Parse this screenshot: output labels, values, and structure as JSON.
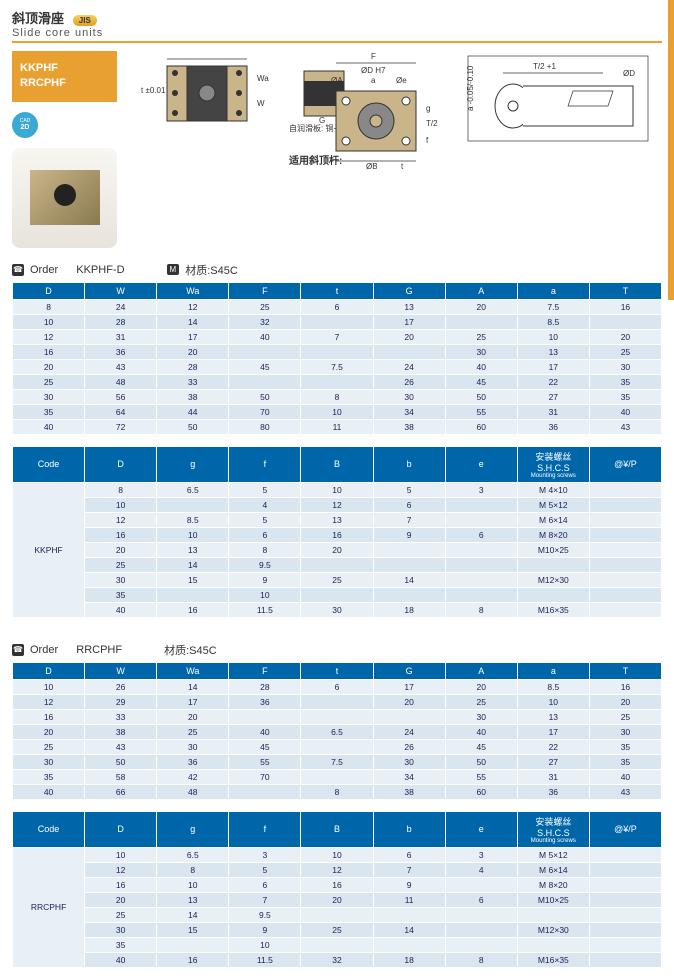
{
  "header": {
    "title_cn": "斜顶滑座",
    "title_en": "Slide core units",
    "jis": "JIS"
  },
  "codes": {
    "line1": "KKPHF",
    "line2": "RRCPHF"
  },
  "cad": {
    "top": "CAD",
    "bottom": "2D"
  },
  "diagram_labels": {
    "top_tol": "t ±0.01",
    "wa": "Wa",
    "w": "W",
    "f": "F",
    "dh7": "ØD H7",
    "oa": "ØA",
    "a_dim": "a",
    "oe": "Øe",
    "g_dim": "G",
    "g_low": "g",
    "t2": "T/2",
    "f_low": "f",
    "ob": "ØB",
    "t_dim": "t",
    "note1": "自润滑板: 铜+石墨",
    "note2": "适用斜顶杆:",
    "tol2": "T/2 +1",
    "od": "ØD",
    "atol": "a -0.05/-0.10"
  },
  "order1": {
    "label": "Order",
    "code": "KKPHF-D",
    "material_badge": "M",
    "material": "材质:S45C"
  },
  "t1": {
    "headers": [
      "D",
      "W",
      "Wa",
      "F",
      "t",
      "G",
      "A",
      "a",
      "T"
    ],
    "rows": [
      [
        "8",
        "24",
        "12",
        "25",
        "6",
        "13",
        "20",
        "7.5",
        "16"
      ],
      [
        "10",
        "28",
        "14",
        "32",
        "",
        "17",
        "",
        "8.5",
        ""
      ],
      [
        "12",
        "31",
        "17",
        "40",
        "7",
        "20",
        "25",
        "10",
        "20"
      ],
      [
        "16",
        "36",
        "20",
        "",
        "",
        "",
        "30",
        "13",
        "25"
      ],
      [
        "20",
        "43",
        "28",
        "45",
        "7.5",
        "24",
        "40",
        "17",
        "30"
      ],
      [
        "25",
        "48",
        "33",
        "",
        "",
        "26",
        "45",
        "22",
        "35"
      ],
      [
        "30",
        "56",
        "38",
        "50",
        "8",
        "30",
        "50",
        "27",
        "35"
      ],
      [
        "35",
        "64",
        "44",
        "70",
        "10",
        "34",
        "55",
        "31",
        "40"
      ],
      [
        "40",
        "72",
        "50",
        "80",
        "11",
        "38",
        "60",
        "36",
        "43"
      ]
    ]
  },
  "t2": {
    "headers": [
      "Code",
      "D",
      "g",
      "f",
      "B",
      "b",
      "e",
      "安装螺丝S.H.C.S",
      "@¥/P"
    ],
    "shcs_sub": "Mounting screws",
    "code": "KKPHF",
    "rows": [
      [
        "8",
        "6.5",
        "5",
        "10",
        "5",
        "3",
        "M 4×10",
        ""
      ],
      [
        "10",
        "",
        "4",
        "12",
        "6",
        "",
        "M 5×12",
        ""
      ],
      [
        "12",
        "8.5",
        "5",
        "13",
        "7",
        "",
        "M 6×14",
        ""
      ],
      [
        "16",
        "10",
        "6",
        "16",
        "9",
        "6",
        "M 8×20",
        ""
      ],
      [
        "20",
        "13",
        "8",
        "20",
        "",
        "",
        "M10×25",
        ""
      ],
      [
        "25",
        "14",
        "9.5",
        "",
        "",
        "",
        "",
        ""
      ],
      [
        "30",
        "15",
        "9",
        "25",
        "14",
        "",
        "M12×30",
        ""
      ],
      [
        "35",
        "",
        "10",
        "",
        "",
        "",
        "",
        ""
      ],
      [
        "40",
        "16",
        "11.5",
        "30",
        "18",
        "8",
        "M16×35",
        ""
      ]
    ]
  },
  "order2": {
    "label": "Order",
    "code": "RRCPHF",
    "material": "材质:S45C"
  },
  "t3": {
    "headers": [
      "D",
      "W",
      "Wa",
      "F",
      "t",
      "G",
      "A",
      "a",
      "T"
    ],
    "rows": [
      [
        "10",
        "26",
        "14",
        "28",
        "6",
        "17",
        "20",
        "8.5",
        "16"
      ],
      [
        "12",
        "29",
        "17",
        "36",
        "",
        "20",
        "25",
        "10",
        "20"
      ],
      [
        "16",
        "33",
        "20",
        "",
        "",
        "",
        "30",
        "13",
        "25"
      ],
      [
        "20",
        "38",
        "25",
        "40",
        "6.5",
        "24",
        "40",
        "17",
        "30"
      ],
      [
        "25",
        "43",
        "30",
        "45",
        "",
        "26",
        "45",
        "22",
        "35"
      ],
      [
        "30",
        "50",
        "36",
        "55",
        "7.5",
        "30",
        "50",
        "27",
        "35"
      ],
      [
        "35",
        "58",
        "42",
        "70",
        "",
        "34",
        "55",
        "31",
        "40"
      ],
      [
        "40",
        "66",
        "48",
        "",
        "8",
        "38",
        "60",
        "36",
        "43"
      ]
    ]
  },
  "t4": {
    "headers": [
      "Code",
      "D",
      "g",
      "f",
      "B",
      "b",
      "e",
      "安装螺丝S.H.C.S",
      "@¥/P"
    ],
    "code": "RRCPHF",
    "rows": [
      [
        "10",
        "6.5",
        "3",
        "10",
        "6",
        "3",
        "M 5×12",
        ""
      ],
      [
        "12",
        "8",
        "5",
        "12",
        "7",
        "4",
        "M 6×14",
        ""
      ],
      [
        "16",
        "10",
        "6",
        "16",
        "9",
        "",
        "M 8×20",
        ""
      ],
      [
        "20",
        "13",
        "7",
        "20",
        "11",
        "6",
        "M10×25",
        ""
      ],
      [
        "25",
        "14",
        "9.5",
        "",
        "",
        "",
        "",
        ""
      ],
      [
        "30",
        "15",
        "9",
        "25",
        "14",
        "",
        "M12×30",
        ""
      ],
      [
        "35",
        "",
        "10",
        "",
        "",
        "",
        "",
        ""
      ],
      [
        "40",
        "16",
        "11.5",
        "32",
        "18",
        "8",
        "M16×35",
        ""
      ]
    ]
  }
}
